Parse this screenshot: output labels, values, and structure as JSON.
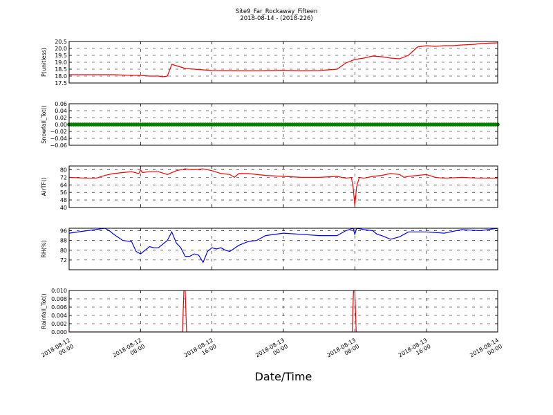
{
  "title": "Site9_Far_Rockaway_Fifteen",
  "subtitle": "2018-08-14 - (2018-226)",
  "xlabel": "Date/Time",
  "x_ticks": [
    "2018-08-12\n00:00",
    "2018-08-12\n08:00",
    "2018-08-12\n16:00",
    "2018-08-13\n00:00",
    "2018-08-13\n08:00",
    "2018-08-13\n16:00",
    "2018-08-14\n00:00"
  ],
  "colors": {
    "red": "#ff0000",
    "green": "#007f00",
    "blue": "#0000ff"
  },
  "chart_data": [
    {
      "type": "line",
      "ylabel": "P(unitless)",
      "ylim": [
        17.5,
        20.5
      ],
      "yticks": [
        "17.5",
        "18.0",
        "18.5",
        "19.0",
        "19.5",
        "20.0",
        "20.5"
      ],
      "grid": true,
      "series": [
        {
          "color": "#ff0000",
          "x": [
            0,
            5,
            7,
            8,
            9,
            10,
            10.5,
            11,
            11.5,
            12,
            12.5,
            13,
            14,
            16,
            20,
            21,
            22,
            24,
            25,
            26,
            28,
            30,
            31,
            32,
            33,
            34,
            35,
            36,
            37,
            38,
            39,
            40,
            41,
            42,
            43,
            44,
            45,
            45.5,
            46,
            47,
            48
          ],
          "values": [
            18.1,
            18.1,
            18.05,
            18.05,
            18.0,
            18.0,
            17.95,
            18.0,
            18.85,
            18.75,
            18.65,
            18.55,
            18.5,
            18.4,
            18.38,
            18.38,
            18.4,
            18.42,
            18.4,
            18.38,
            18.4,
            18.5,
            18.95,
            19.2,
            19.3,
            19.45,
            19.4,
            19.3,
            19.25,
            19.5,
            20.1,
            20.2,
            20.15,
            20.2,
            20.2,
            20.25,
            20.28,
            20.3,
            20.35,
            20.38,
            20.4
          ]
        }
      ]
    },
    {
      "type": "line",
      "ylabel": "Snowfall_Tot()",
      "ylim": [
        -0.06,
        0.06
      ],
      "yticks": [
        "−0.06",
        "−0.04",
        "−0.02",
        "0.00",
        "0.02",
        "0.04",
        "0.06"
      ],
      "grid": true,
      "series": [
        {
          "color": "#007f00",
          "marker": "o",
          "x": [
            0,
            48
          ],
          "values": [
            0,
            0
          ]
        }
      ]
    },
    {
      "type": "line",
      "ylabel": "AirTF()",
      "ylim": [
        40,
        84
      ],
      "yticks": [
        "40",
        "48",
        "56",
        "64",
        "72",
        "80"
      ],
      "grid": true,
      "series": [
        {
          "color": "#ff0000",
          "x": [
            0,
            2,
            3,
            4,
            5,
            6,
            7,
            7.8,
            8,
            8.2,
            9,
            10,
            11,
            12,
            13,
            14,
            15,
            16,
            17,
            18,
            18.5,
            19,
            20,
            22,
            24,
            26,
            28,
            30,
            31,
            31.6,
            31.8,
            32,
            32.2,
            32.5,
            33,
            34,
            35,
            36,
            37,
            37.5,
            38,
            39,
            40,
            41,
            42,
            44,
            46,
            48
          ],
          "values": [
            72,
            71,
            71,
            74,
            76,
            77,
            78,
            76,
            80,
            77,
            78,
            78,
            75,
            79,
            81,
            80,
            81,
            79,
            76,
            75,
            72,
            76,
            76,
            74,
            73,
            72,
            72,
            73,
            71,
            72,
            62,
            42,
            62,
            72,
            71,
            73,
            74,
            76,
            75,
            72,
            73,
            74,
            75,
            72,
            71,
            72,
            71,
            71
          ]
        }
      ]
    },
    {
      "type": "line",
      "ylabel": "RH(%)",
      "ylim": [
        64,
        98
      ],
      "yticks": [
        "72",
        "80",
        "88",
        "96"
      ],
      "grid": true,
      "series": [
        {
          "color": "#0000ff",
          "x": [
            0,
            2,
            3,
            4,
            4.5,
            5,
            6,
            7,
            7.5,
            8,
            9,
            9.5,
            10,
            11,
            11.5,
            12,
            12.5,
            13,
            13.5,
            14,
            14.5,
            15,
            15.5,
            16,
            16.5,
            17,
            17.5,
            18,
            19,
            20,
            21,
            22,
            24,
            26,
            28,
            30,
            31,
            31.8,
            32,
            32.2,
            33,
            34,
            34.5,
            35,
            36,
            37,
            38,
            40,
            42,
            44,
            46,
            48
          ],
          "values": [
            94,
            96,
            97,
            98,
            96,
            93,
            88,
            87,
            79,
            77,
            83,
            82,
            82,
            88,
            95,
            86,
            82,
            75,
            75,
            77,
            76,
            70,
            79,
            82,
            81,
            82,
            80,
            79,
            84,
            87,
            88,
            92,
            94,
            93,
            92,
            92,
            96,
            98,
            93,
            98,
            97,
            96,
            93,
            92,
            89,
            91,
            95,
            95,
            94,
            97,
            96,
            98
          ]
        }
      ]
    },
    {
      "type": "line",
      "ylabel": "Rainfall_Tot()",
      "ylim": [
        0,
        0.01
      ],
      "yticks": [
        "0.000",
        "0.002",
        "0.004",
        "0.006",
        "0.008",
        "0.010"
      ],
      "grid": true,
      "series": [
        {
          "color": "#ff0000",
          "x": [
            0,
            12.7,
            12.85,
            13.0,
            13.15,
            31.7,
            31.85,
            32.0,
            32.15,
            48
          ],
          "values": [
            0,
            0,
            0.01,
            0.01,
            0,
            0,
            0.01,
            0.01,
            0,
            0
          ]
        }
      ]
    }
  ]
}
